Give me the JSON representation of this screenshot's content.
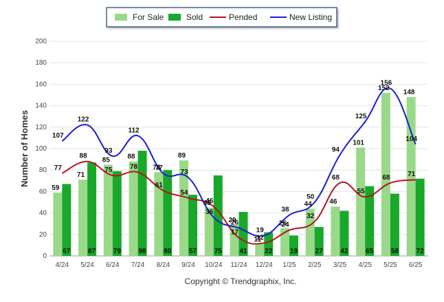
{
  "chart_data": {
    "type": "bar",
    "title": "",
    "xlabel": "",
    "ylabel": "Number of Homes",
    "ylim": [
      0,
      200
    ],
    "yticks": [
      0,
      20,
      40,
      60,
      80,
      100,
      120,
      140,
      160,
      180,
      200
    ],
    "grid": true,
    "legend_position": "top-center",
    "categories": [
      "4/24",
      "5/24",
      "6/24",
      "7/24",
      "8/24",
      "9/24",
      "10/24",
      "11/24",
      "12/24",
      "1/25",
      "2/25",
      "3/25",
      "4/25",
      "5/25",
      "6/25"
    ],
    "series": [
      {
        "name": "For Sale",
        "type": "bar",
        "color": "#9ad98a",
        "label_position": "top",
        "values": [
          59,
          71,
          85,
          88,
          78,
          89,
          45,
          29,
          11,
          26,
          44,
          46,
          101,
          152,
          148
        ]
      },
      {
        "name": "Sold",
        "type": "bar",
        "color": "#1aa82b",
        "label_position": "bottom",
        "values": [
          67,
          87,
          79,
          98,
          80,
          57,
          75,
          41,
          22,
          19,
          27,
          42,
          65,
          58,
          72
        ]
      },
      {
        "name": "Pended",
        "type": "line",
        "color": "#b5121b",
        "values": [
          77,
          88,
          75,
          78,
          61,
          54,
          46,
          17,
          12,
          24,
          32,
          68,
          55,
          68,
          71
        ]
      },
      {
        "name": "New Listing",
        "type": "line",
        "color": "#1a1ad6",
        "values": [
          107,
          122,
          93,
          112,
          77,
          73,
          36,
          26,
          19,
          38,
          50,
          94,
          125,
          156,
          104
        ]
      }
    ],
    "footer": "Copyright © Trendgraphix, Inc."
  }
}
